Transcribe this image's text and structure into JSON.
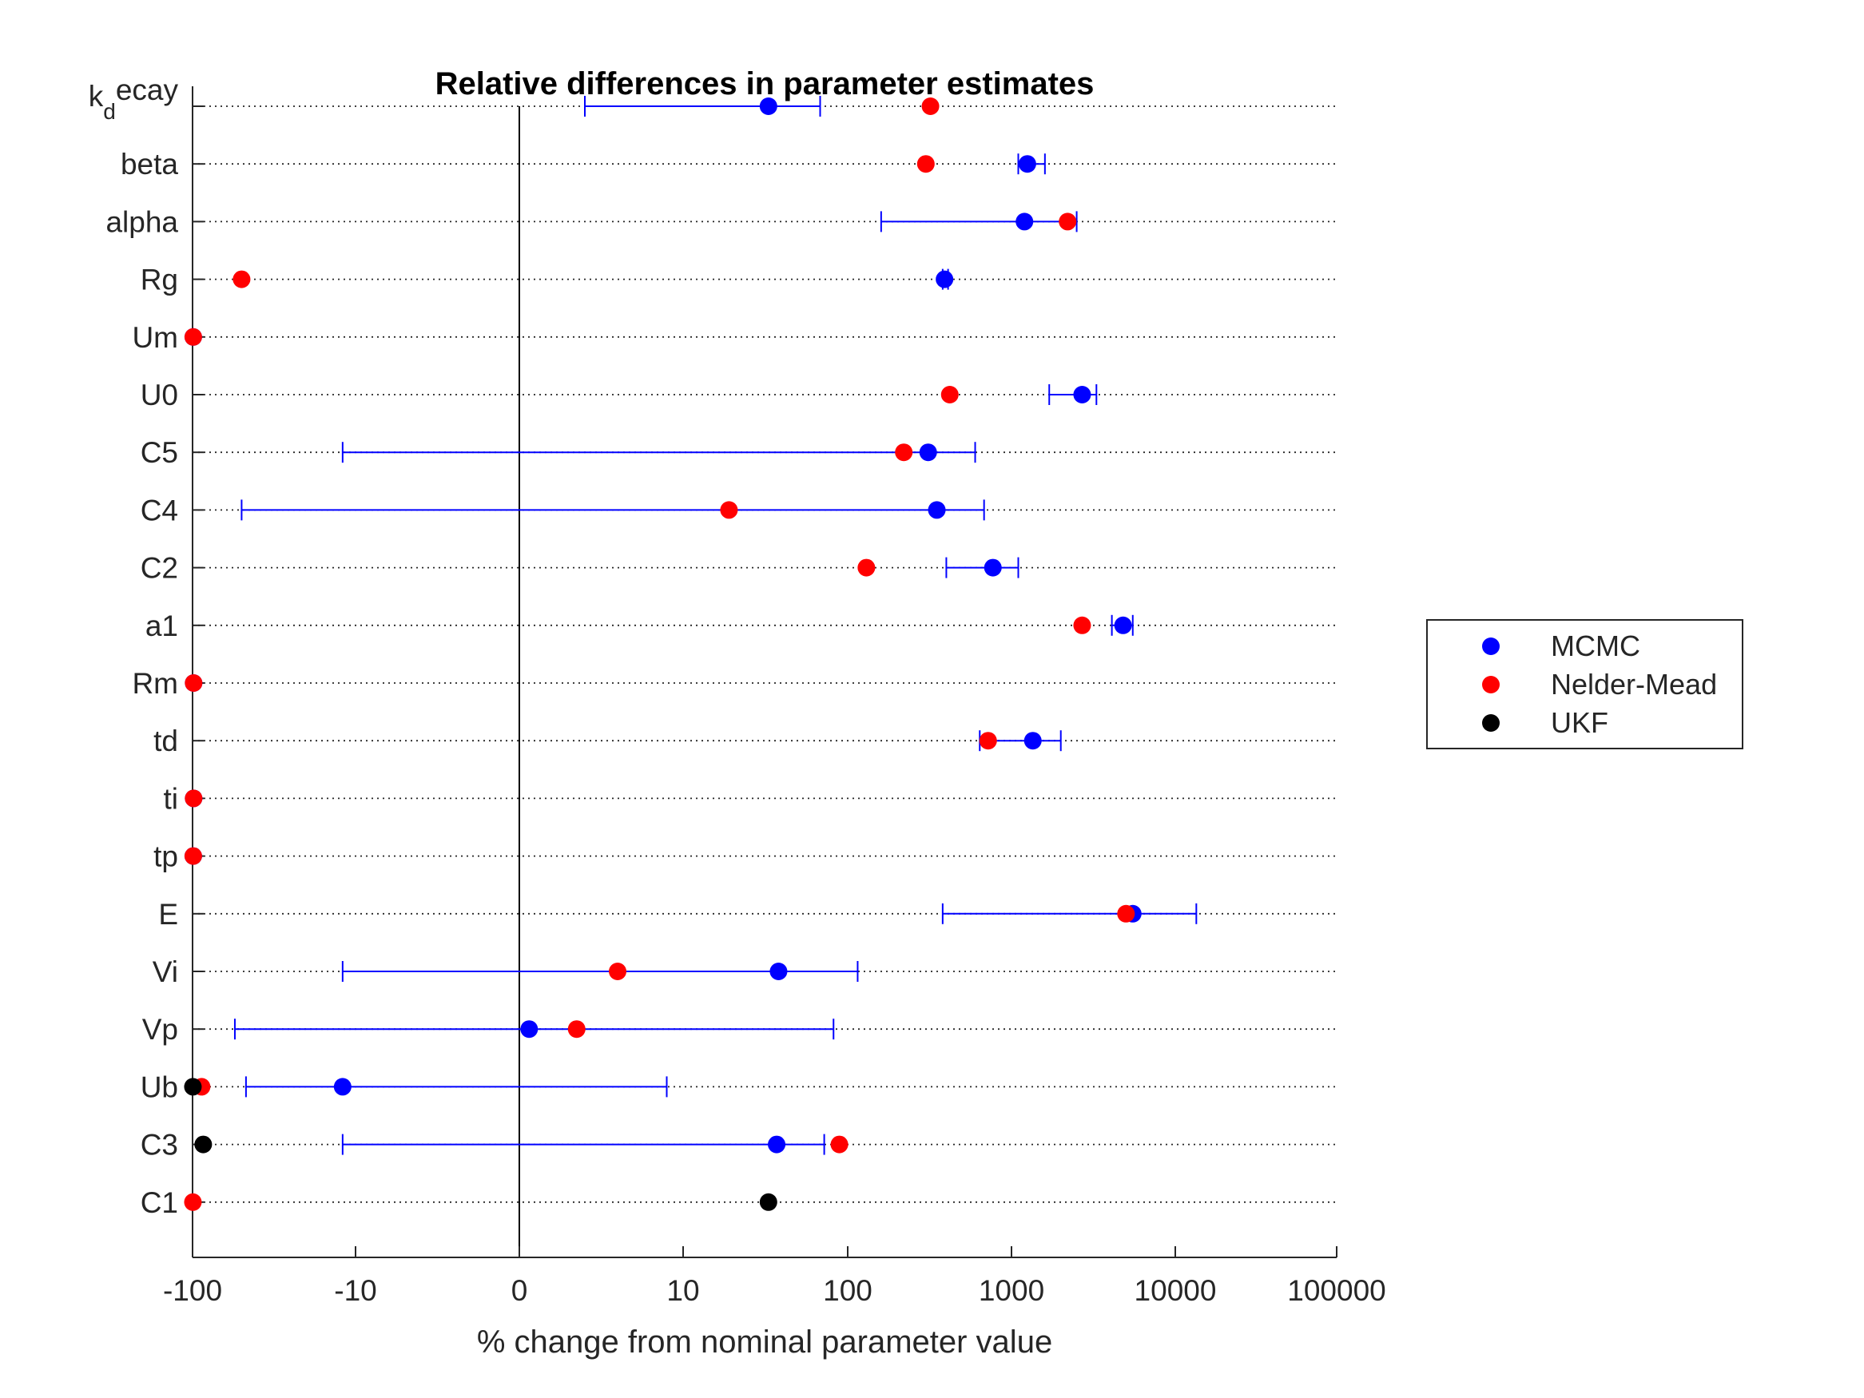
{
  "chart_data": {
    "type": "scatter",
    "title": "Relative differences in parameter estimates",
    "xlabel": "% change from nominal parameter value",
    "ylabel": "",
    "x_scale": "symmetric-log",
    "xlim": [
      -100,
      100000
    ],
    "x_ticks": [
      -100,
      -10,
      0,
      10,
      100,
      1000,
      10000,
      100000
    ],
    "x_tick_labels": [
      "-100",
      "-10",
      "0",
      "10",
      "100",
      "1000",
      "10000",
      "100000"
    ],
    "grid": "horizontal dotted",
    "legend_position": "outside-right",
    "categories": [
      {
        "base": "k",
        "sub": "d",
        "rest": "ecay"
      },
      {
        "base": "beta"
      },
      {
        "base": "alpha"
      },
      {
        "base": "Rg"
      },
      {
        "base": "Um"
      },
      {
        "base": "U0"
      },
      {
        "base": "C5"
      },
      {
        "base": "C4"
      },
      {
        "base": "C2"
      },
      {
        "base": "a1"
      },
      {
        "base": "Rm"
      },
      {
        "base": "td"
      },
      {
        "base": "ti"
      },
      {
        "base": "tp"
      },
      {
        "base": "E"
      },
      {
        "base": "Vi"
      },
      {
        "base": "Vp"
      },
      {
        "base": "Ub"
      },
      {
        "base": "C3"
      },
      {
        "base": "C1"
      }
    ],
    "series": [
      {
        "name": "MCMC",
        "color": "#0000ff",
        "values": [
          33,
          1250,
          1200,
          390,
          -99,
          2700,
          310,
          350,
          770,
          4800,
          -98.5,
          1350,
          -98.5,
          -99,
          5500,
          38,
          0.6,
          -12,
          37,
          null
        ],
        "error_low": [
          4,
          1100,
          160,
          380,
          -99,
          1700,
          -12,
          -50,
          400,
          4100,
          -98.5,
          640,
          -98.5,
          -99,
          380,
          -12,
          -55,
          -47,
          -12,
          null
        ],
        "error_high": [
          68,
          1600,
          2500,
          410,
          -99,
          3300,
          600,
          680,
          1100,
          5500,
          -98.5,
          2000,
          -98.5,
          -99,
          13500,
          115,
          82,
          9,
          72,
          null
        ]
      },
      {
        "name": "Nelder-Mead",
        "color": "#ff0000",
        "values": [
          320,
          300,
          2200,
          -50,
          -99,
          420,
          220,
          19,
          130,
          2700,
          -98.5,
          720,
          -98.5,
          -99,
          5000,
          6,
          3.5,
          -88,
          89,
          -99.5
        ]
      },
      {
        "name": "UKF",
        "color": "#000000",
        "values": [
          null,
          null,
          null,
          null,
          null,
          null,
          null,
          null,
          null,
          null,
          null,
          null,
          null,
          null,
          null,
          null,
          null,
          -99.5,
          -86,
          33
        ]
      }
    ]
  },
  "legend": {
    "items": [
      {
        "label": "MCMC",
        "color": "#0000ff"
      },
      {
        "label": "Nelder-Mead",
        "color": "#ff0000"
      },
      {
        "label": "UKF",
        "color": "#000000"
      }
    ]
  }
}
